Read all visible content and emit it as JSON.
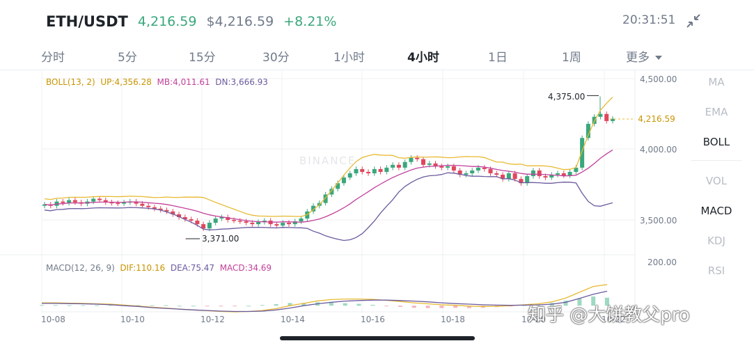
{
  "header": {
    "pair": "ETH/USDT",
    "last_price": "4,216.59",
    "fiat_price": "$4,216.59",
    "change": "+8.21%",
    "time": "20:31:51"
  },
  "tabs": [
    {
      "label": "分时"
    },
    {
      "label": "5分"
    },
    {
      "label": "15分"
    },
    {
      "label": "30分"
    },
    {
      "label": "1小时"
    },
    {
      "label": "4小时"
    },
    {
      "label": "1日"
    },
    {
      "label": "1周"
    },
    {
      "label": "更多"
    }
  ],
  "active_tab": "4小时",
  "indicators_side": [
    {
      "label": "MA",
      "active": false
    },
    {
      "label": "EMA",
      "active": false
    },
    {
      "label": "BOLL",
      "active": true
    },
    {
      "label": "VOL",
      "active": false
    },
    {
      "label": "MACD",
      "active": true
    },
    {
      "label": "KDJ",
      "active": false
    },
    {
      "label": "RSI",
      "active": false
    }
  ],
  "boll": {
    "name": "BOLL(13, 2)",
    "up": "UP:4,356.28",
    "mb": "MB:4,011.61",
    "dn": "DN:3,666.93"
  },
  "macd": {
    "name": "MACD(12, 26, 9)",
    "dif": "DIF:110.16",
    "dea": "DEA:75.47",
    "macd": "MACD:34.69"
  },
  "price_axis": [
    "4,500.00",
    "4,000.00",
    "3,500.00"
  ],
  "macd_axis": "200.00",
  "current_price_tag": "4,216.59",
  "high_marker": "4,375.00",
  "low_marker": "3,371.00",
  "x_axis": [
    "10-08",
    "10-10",
    "10-12",
    "10-14",
    "10-16",
    "10-18",
    "10-20",
    "10-22"
  ],
  "watermark": "知乎 @大饼教父pro",
  "binance_watermark": "BINANCE",
  "colors": {
    "up": "#3aa77c",
    "down": "#e0475c",
    "boll_up": "#e8b931",
    "boll_mb": "#c23f9a",
    "boll_dn": "#6b5a9e"
  },
  "chart_data": {
    "type": "candlestick",
    "x": [
      "10-08",
      "10-10",
      "10-12",
      "10-14",
      "10-16",
      "10-18",
      "10-20",
      "10-22"
    ],
    "price_range": [
      3300,
      4550
    ],
    "high": 4375.0,
    "low": 3371.0,
    "last": 4216.59,
    "closes": [
      3610,
      3600,
      3630,
      3620,
      3640,
      3625,
      3615,
      3630,
      3650,
      3640,
      3625,
      3620,
      3615,
      3625,
      3630,
      3615,
      3600,
      3590,
      3580,
      3570,
      3560,
      3540,
      3520,
      3505,
      3495,
      3470,
      3440,
      3480,
      3510,
      3520,
      3500,
      3495,
      3490,
      3480,
      3470,
      3485,
      3495,
      3470,
      3460,
      3480,
      3470,
      3490,
      3510,
      3560,
      3600,
      3620,
      3680,
      3720,
      3760,
      3800,
      3830,
      3860,
      3840,
      3830,
      3860,
      3840,
      3870,
      3890,
      3870,
      3910,
      3940,
      3930,
      3890,
      3900,
      3880,
      3870,
      3880,
      3850,
      3820,
      3830,
      3850,
      3870,
      3860,
      3830,
      3820,
      3790,
      3830,
      3790,
      3760,
      3810,
      3850,
      3810,
      3800,
      3820,
      3830,
      3815,
      3840,
      3870,
      4080,
      4180,
      4230,
      4250,
      4200,
      4216.59
    ],
    "macd_range": [
      -60,
      200
    ],
    "dif": [
      15,
      15,
      13,
      12,
      10,
      8,
      3,
      -2,
      -8,
      -12,
      -18,
      -22,
      -26,
      -30,
      -32,
      -30,
      -25,
      -15,
      0,
      12,
      25,
      32,
      35,
      35,
      33,
      28,
      22,
      15,
      10,
      5,
      2,
      -2,
      -4,
      -3,
      0,
      5,
      10,
      20,
      40,
      70,
      100,
      110.16
    ],
    "dea": [
      12,
      12,
      11,
      10,
      8,
      5,
      0,
      -4,
      -10,
      -14,
      -18,
      -22,
      -25,
      -28,
      -30,
      -30,
      -28,
      -22,
      -12,
      0,
      10,
      18,
      24,
      27,
      29,
      29,
      27,
      24,
      20,
      15,
      11,
      8,
      5,
      3,
      2,
      3,
      4,
      8,
      18,
      38,
      60,
      75.47
    ]
  }
}
